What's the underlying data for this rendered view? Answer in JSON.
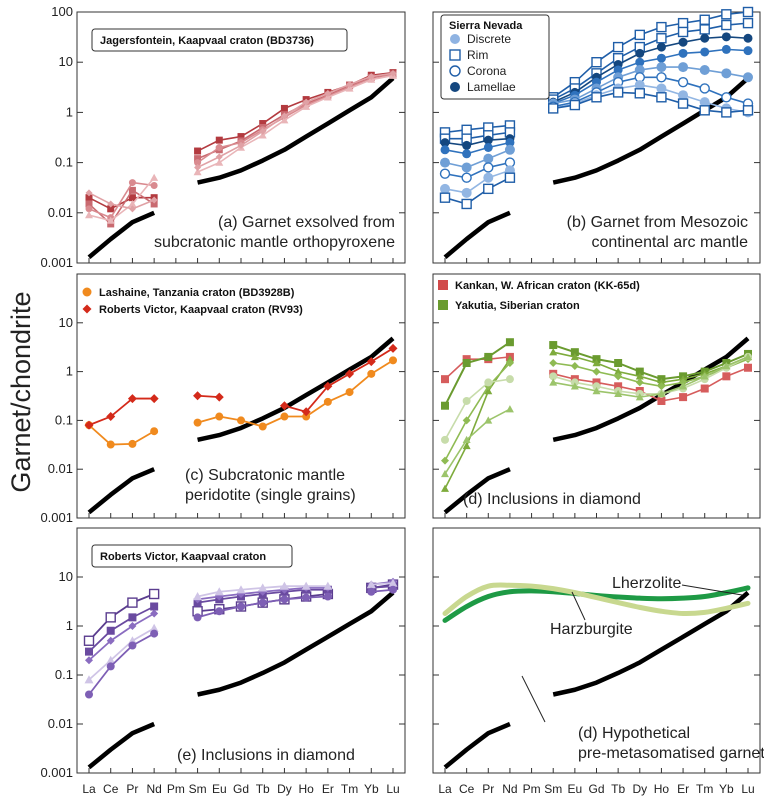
{
  "figure": {
    "ylabel": "Garnet/chondrite",
    "x_labels": [
      "La",
      "Ce",
      "Pr",
      "Nd",
      "Pm",
      "Sm",
      "Eu",
      "Gd",
      "Tb",
      "Dy",
      "Ho",
      "Er",
      "Tm",
      "Yb",
      "Lu"
    ]
  },
  "chart_data": [
    {
      "type": "line",
      "panel": "a",
      "yscale": "log",
      "ylim": [
        0.001,
        100
      ],
      "y_ticks": [
        "0.001",
        "0.01",
        "0.1",
        "1",
        "10",
        "100"
      ],
      "x": [
        "La",
        "Ce",
        "Pr",
        "Nd",
        "Pm",
        "Sm",
        "Eu",
        "Gd",
        "Tb",
        "Dy",
        "Ho",
        "Er",
        "Tm",
        "Yb",
        "Lu"
      ],
      "title_box": "Jagersfontein, Kaapvaal craton (BD3736)",
      "caption": [
        "(a) Garnet exsolved from",
        "subcratonic mantle orthopyroxene"
      ],
      "series": [
        {
          "values": [
            0.0013,
            0.003,
            0.0065,
            0.01,
            null,
            0.04,
            0.05,
            0.07,
            0.11,
            0.18,
            0.33,
            0.6,
            1.1,
            2.0,
            4.8
          ]
        },
        {
          "values": [
            0.02,
            0.012,
            0.02,
            0.02,
            null,
            0.17,
            0.28,
            0.33,
            0.6,
            1.2,
            1.8,
            2.5,
            3.5,
            5.5,
            6.2
          ]
        },
        {
          "values": [
            0.015,
            0.006,
            0.028,
            0.015,
            null,
            0.12,
            0.18,
            0.27,
            0.5,
            0.9,
            1.5,
            2.2,
            3.4,
            5.0,
            5.8
          ]
        },
        {
          "values": [
            0.012,
            0.008,
            0.04,
            0.035,
            null,
            0.1,
            0.2,
            0.25,
            0.45,
            0.8,
            1.4,
            2.1,
            3.2,
            4.6,
            5.6
          ]
        },
        {
          "values": [
            0.009,
            0.007,
            0.015,
            0.05,
            null,
            0.065,
            0.1,
            0.2,
            0.35,
            0.7,
            1.3,
            2.0,
            3.0,
            4.5,
            5.4
          ]
        },
        {
          "values": [
            0.025,
            0.015,
            0.012,
            0.018,
            null,
            0.08,
            0.13,
            0.22,
            0.42,
            0.85,
            1.6,
            2.4,
            3.6,
            5.2,
            6.0
          ]
        }
      ]
    },
    {
      "type": "line",
      "panel": "b",
      "yscale": "log",
      "ylim": [
        0.001,
        100
      ],
      "x": [
        "La",
        "Ce",
        "Pr",
        "Nd",
        "Pm",
        "Sm",
        "Eu",
        "Gd",
        "Tb",
        "Dy",
        "Ho",
        "Er",
        "Tm",
        "Yb",
        "Lu"
      ],
      "legend_title": "Sierra Nevada",
      "legend": [
        "Discrete",
        "Rim",
        "Corona",
        "Lamellae"
      ],
      "caption": [
        "(b) Garnet from Mesozoic",
        "continental arc mantle"
      ],
      "series": [
        {
          "values": [
            0.0013,
            0.003,
            0.0065,
            0.01,
            null,
            0.04,
            0.05,
            0.07,
            0.11,
            0.18,
            0.33,
            0.6,
            1.1,
            2.0,
            4.8
          ]
        },
        {
          "values": [
            0.4,
            0.45,
            0.5,
            0.55,
            null,
            2.0,
            4.0,
            10,
            20,
            35,
            50,
            60,
            70,
            90,
            100
          ]
        },
        {
          "values": [
            0.3,
            0.3,
            0.35,
            0.4,
            null,
            1.8,
            3.0,
            6,
            12,
            20,
            30,
            40,
            45,
            55,
            60
          ]
        },
        {
          "values": [
            0.25,
            0.22,
            0.28,
            0.3,
            null,
            1.6,
            2.5,
            5,
            9,
            15,
            20,
            25,
            30,
            32,
            30
          ]
        },
        {
          "values": [
            0.18,
            0.15,
            0.2,
            0.25,
            null,
            1.5,
            2.2,
            4,
            7,
            10,
            12,
            15,
            16,
            18,
            17
          ]
        },
        {
          "values": [
            0.1,
            0.08,
            0.12,
            0.18,
            null,
            1.5,
            1.8,
            3,
            5,
            7,
            8,
            8,
            7,
            6,
            5
          ]
        },
        {
          "values": [
            0.06,
            0.05,
            0.08,
            0.1,
            null,
            1.3,
            1.6,
            2.5,
            4,
            5,
            5,
            4,
            3,
            2,
            1.5
          ]
        },
        {
          "values": [
            0.03,
            0.025,
            0.05,
            0.07,
            null,
            1.2,
            1.5,
            2.2,
            3,
            3.5,
            3,
            2.2,
            1.6,
            1.2,
            1.0
          ]
        },
        {
          "values": [
            0.02,
            0.015,
            0.03,
            0.05,
            null,
            1.2,
            1.4,
            2,
            2.5,
            2.4,
            2,
            1.5,
            1.1,
            1.0,
            1.1
          ]
        }
      ]
    },
    {
      "type": "line",
      "panel": "c",
      "yscale": "log",
      "ylim": [
        0.001,
        100
      ],
      "y_ticks": [
        "0.001",
        "0.01",
        "0.1",
        "1",
        "10"
      ],
      "x": [
        "La",
        "Ce",
        "Pr",
        "Nd",
        "Pm",
        "Sm",
        "Eu",
        "Gd",
        "Tb",
        "Dy",
        "Ho",
        "Er",
        "Tm",
        "Yb",
        "Lu"
      ],
      "legend": [
        "Lashaine, Tanzania craton (BD3928B)",
        "Roberts Victor, Kaapvaal craton (RV93)"
      ],
      "caption": [
        "(c) Subcratonic mantle",
        "peridotite (single grains)"
      ],
      "series": [
        {
          "values": [
            0.0013,
            0.003,
            0.0065,
            0.01,
            null,
            0.04,
            0.05,
            0.07,
            0.11,
            0.18,
            0.33,
            0.6,
            1.1,
            2.0,
            4.8
          ]
        },
        {
          "name": "Lashaine, Tanzania craton (BD3928B)",
          "values": [
            0.08,
            0.032,
            0.033,
            0.06,
            null,
            0.09,
            0.12,
            0.1,
            0.075,
            0.12,
            0.12,
            0.24,
            0.38,
            0.9,
            1.7
          ]
        },
        {
          "name": "Roberts Victor, Kaapvaal craton (RV93)",
          "values": [
            0.08,
            0.12,
            0.28,
            0.28,
            null,
            0.32,
            0.3,
            null,
            null,
            0.2,
            0.15,
            0.5,
            0.9,
            1.6,
            3.0
          ]
        }
      ]
    },
    {
      "type": "line",
      "panel": "d",
      "yscale": "log",
      "ylim": [
        0.001,
        100
      ],
      "x": [
        "La",
        "Ce",
        "Pr",
        "Nd",
        "Pm",
        "Sm",
        "Eu",
        "Gd",
        "Tb",
        "Dy",
        "Ho",
        "Er",
        "Tm",
        "Yb",
        "Lu"
      ],
      "legend": [
        "Kankan, W. African craton (KK-65d)",
        "Yakutia, Siberian craton"
      ],
      "caption": [
        "(d) Inclusions in diamond"
      ],
      "series": [
        {
          "values": [
            0.0013,
            0.003,
            0.0065,
            0.01,
            null,
            0.04,
            0.05,
            0.07,
            0.11,
            0.18,
            0.33,
            0.6,
            1.1,
            2.0,
            4.8
          ]
        },
        {
          "name": "Kankan, W. African craton (KK-65d)",
          "values": [
            0.7,
            1.8,
            1.8,
            2.0,
            null,
            0.9,
            0.7,
            0.6,
            0.5,
            0.4,
            0.25,
            0.3,
            0.45,
            0.8,
            1.2
          ]
        },
        {
          "name": "Yakutia, Siberian craton",
          "values": [
            0.2,
            1.5,
            2.0,
            4.0,
            null,
            3.5,
            2.5,
            1.8,
            1.5,
            1.0,
            0.7,
            0.8,
            1.0,
            1.5,
            2.3
          ]
        },
        {
          "values": [
            0.004,
            0.03,
            0.4,
            1.8,
            null,
            2.5,
            2.0,
            1.5,
            1.0,
            0.8,
            0.6,
            0.7,
            0.9,
            1.3,
            2.0
          ]
        },
        {
          "values": [
            0.015,
            0.1,
            0.5,
            1.5,
            null,
            1.5,
            1.3,
            1.0,
            0.8,
            0.6,
            0.5,
            0.6,
            0.8,
            1.2,
            1.8
          ]
        },
        {
          "values": [
            0.04,
            0.25,
            0.6,
            0.7,
            null,
            0.8,
            0.6,
            0.5,
            0.4,
            0.35,
            0.35,
            0.45,
            0.7,
            1.2,
            2.0
          ]
        },
        {
          "values": [
            0.008,
            0.04,
            0.1,
            0.17,
            null,
            0.6,
            0.5,
            0.4,
            0.35,
            0.3,
            0.35,
            0.5,
            0.8,
            1.3,
            2.0
          ]
        }
      ]
    },
    {
      "type": "line",
      "panel": "e",
      "yscale": "log",
      "ylim": [
        0.001,
        100
      ],
      "y_ticks": [
        "0.001",
        "0.01",
        "0.1",
        "1",
        "10"
      ],
      "x": [
        "La",
        "Ce",
        "Pr",
        "Nd",
        "Pm",
        "Sm",
        "Eu",
        "Gd",
        "Tb",
        "Dy",
        "Ho",
        "Er",
        "Tm",
        "Yb",
        "Lu"
      ],
      "title_box": "Roberts Victor, Kaapvaal craton",
      "caption": [
        "(e) Inclusions in diamond"
      ],
      "series": [
        {
          "values": [
            0.0013,
            0.003,
            0.0065,
            0.01,
            null,
            0.04,
            0.05,
            0.07,
            0.11,
            0.18,
            0.33,
            0.6,
            1.1,
            2.0,
            4.8
          ]
        },
        {
          "values": [
            0.5,
            1.5,
            3.0,
            4.5,
            null,
            2.0,
            2.2,
            2.5,
            3.0,
            3.5,
            4.0,
            4.5,
            null,
            6.0,
            7.0
          ]
        },
        {
          "values": [
            0.3,
            0.8,
            1.5,
            2.5,
            null,
            3.0,
            3.5,
            4.0,
            4.5,
            5.0,
            5.5,
            5.5,
            null,
            6.0,
            6.5
          ]
        },
        {
          "values": [
            0.2,
            0.5,
            1.0,
            1.8,
            null,
            3.5,
            4.0,
            4.5,
            5.0,
            5.5,
            6.0,
            6.0,
            null,
            7.0,
            8.0
          ]
        },
        {
          "values": [
            0.08,
            0.2,
            0.5,
            0.9,
            null,
            4.0,
            5.0,
            5.5,
            6.0,
            6.5,
            6.5,
            6.5,
            null,
            7.0,
            7.5
          ]
        },
        {
          "values": [
            0.04,
            0.15,
            0.4,
            0.7,
            null,
            1.5,
            2.0,
            2.5,
            3.0,
            3.5,
            3.8,
            4.0,
            null,
            5.0,
            5.5
          ]
        }
      ]
    },
    {
      "type": "line",
      "panel": "f",
      "yscale": "log",
      "ylim": [
        0.001,
        100
      ],
      "x": [
        "La",
        "Ce",
        "Pr",
        "Nd",
        "Pm",
        "Sm",
        "Eu",
        "Gd",
        "Tb",
        "Dy",
        "Ho",
        "Er",
        "Tm",
        "Yb",
        "Lu"
      ],
      "caption": [
        "(d) Hypothetical",
        "pre-metasomatised garnet"
      ],
      "annotations": [
        "Lherzolite",
        "Harzburgite"
      ],
      "series": [
        {
          "values": [
            0.0013,
            0.003,
            0.0065,
            0.01,
            null,
            0.04,
            0.05,
            0.07,
            0.11,
            0.18,
            0.33,
            0.6,
            1.1,
            2.0,
            4.8
          ]
        },
        {
          "name": "Lherzolite",
          "values": [
            1.3,
            2.5,
            4.0,
            5.0,
            5.2,
            5.0,
            4.6,
            4.2,
            3.9,
            3.7,
            3.6,
            3.7,
            4.0,
            4.8,
            6.0
          ]
        },
        {
          "name": "Harzburgite",
          "values": [
            1.8,
            4.0,
            6.5,
            6.8,
            6.5,
            5.8,
            4.8,
            3.8,
            3.0,
            2.4,
            2.0,
            1.8,
            1.9,
            2.3,
            2.9
          ]
        }
      ]
    }
  ]
}
